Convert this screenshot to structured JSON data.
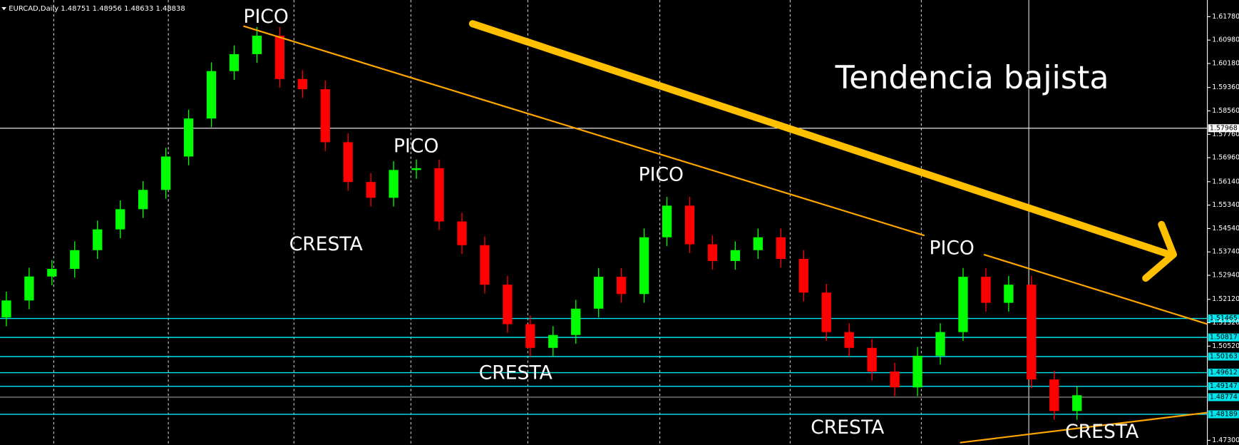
{
  "chart_data": {
    "type": "candlestick",
    "title": "EURCAD,Daily 1.48751 1.48956 1.48633 1.48838",
    "annotations": [
      "PICO",
      "PICO",
      "PICO",
      "PICO",
      "CRESTA",
      "CRESTA",
      "CRESTA",
      "CRESTA",
      "Tendencia bajista"
    ],
    "ylim": [
      1.4714,
      1.6235
    ],
    "yticks": [
      {
        "value": 1.6178,
        "label": "1.61780"
      },
      {
        "value": 1.6098,
        "label": "1.60980"
      },
      {
        "value": 1.6018,
        "label": "1.60180"
      },
      {
        "value": 1.5936,
        "label": "1.59360"
      },
      {
        "value": 1.5856,
        "label": "1.58560"
      },
      {
        "value": 1.5776,
        "label": "1.57760"
      },
      {
        "value": 1.5696,
        "label": "1.56960"
      },
      {
        "value": 1.5614,
        "label": "1.56140"
      },
      {
        "value": 1.5534,
        "label": "1.55340"
      },
      {
        "value": 1.5454,
        "label": "1.54540"
      },
      {
        "value": 1.5374,
        "label": "1.53740"
      },
      {
        "value": 1.5294,
        "label": "1.52940"
      },
      {
        "value": 1.5212,
        "label": "1.52120"
      },
      {
        "value": 1.5132,
        "label": "1.51320"
      },
      {
        "value": 1.5052,
        "label": "1.50520"
      },
      {
        "value": 1.473,
        "label": "1.47300"
      }
    ],
    "levels": [
      {
        "value": 1.51465,
        "label": "1.51465"
      },
      {
        "value": 1.50817,
        "label": "1.50817"
      },
      {
        "value": 1.50163,
        "label": "1.50163"
      },
      {
        "value": 1.49612,
        "label": "1.49612"
      },
      {
        "value": 1.49147,
        "label": "1.49147"
      },
      {
        "value": 1.48189,
        "label": "1.48189"
      }
    ],
    "current_price": {
      "value": 1.48774,
      "label": "1.48774"
    },
    "crosshair": {
      "value": 1.57968,
      "label": "1.57968"
    },
    "up_color": "#00ff00",
    "down_color": "#ff0000",
    "level_color": "#00e5ee",
    "open": [
      1.515,
      1.5208,
      1.529,
      1.5316,
      1.538,
      1.5451,
      1.552,
      1.5586,
      1.57,
      1.583,
      1.5992,
      1.605,
      1.6113,
      1.5965,
      1.593,
      1.5749,
      1.5613,
      1.5559,
      1.5654,
      1.566,
      1.5478,
      1.5397,
      1.5262,
      1.5127,
      1.5046,
      1.509,
      1.518,
      1.5289,
      1.523,
      1.5424,
      1.5532,
      1.54,
      1.5343,
      1.538,
      1.5424,
      1.535,
      1.5235,
      1.51,
      1.5046,
      1.4965,
      1.4911,
      1.5019,
      1.51,
      1.5289,
      1.52,
      1.5262,
      1.4938,
      1.483
    ],
    "high": [
      1.5238,
      1.532,
      1.5346,
      1.541,
      1.5481,
      1.555,
      1.5616,
      1.573,
      1.586,
      1.6022,
      1.608,
      1.6143,
      1.6143,
      1.5995,
      1.596,
      1.5779,
      1.5643,
      1.5684,
      1.569,
      1.569,
      1.5508,
      1.5427,
      1.5292,
      1.5157,
      1.512,
      1.521,
      1.5319,
      1.5319,
      1.5454,
      1.5562,
      1.5562,
      1.543,
      1.541,
      1.5454,
      1.5454,
      1.538,
      1.5265,
      1.513,
      1.5076,
      1.4995,
      1.5049,
      1.513,
      1.5319,
      1.5319,
      1.5292,
      1.5292,
      1.4968,
      1.4914
    ],
    "low": [
      1.512,
      1.5178,
      1.526,
      1.5286,
      1.535,
      1.5421,
      1.549,
      1.5556,
      1.567,
      1.58,
      1.5962,
      1.602,
      1.5935,
      1.59,
      1.5719,
      1.5583,
      1.5529,
      1.5529,
      1.5624,
      1.5448,
      1.5367,
      1.5232,
      1.5097,
      1.5016,
      1.5016,
      1.506,
      1.515,
      1.52,
      1.52,
      1.5394,
      1.537,
      1.5313,
      1.5313,
      1.535,
      1.532,
      1.5205,
      1.507,
      1.5016,
      1.4935,
      1.4881,
      1.4881,
      1.4989,
      1.507,
      1.517,
      1.517,
      1.4908,
      1.48,
      1.48
    ],
    "close": [
      1.5208,
      1.529,
      1.5316,
      1.538,
      1.5451,
      1.552,
      1.5586,
      1.57,
      1.583,
      1.5992,
      1.605,
      1.6113,
      1.5965,
      1.593,
      1.5749,
      1.5613,
      1.5559,
      1.5654,
      1.566,
      1.5478,
      1.5397,
      1.5262,
      1.5127,
      1.5046,
      1.509,
      1.518,
      1.5289,
      1.523,
      1.5424,
      1.5532,
      1.54,
      1.5343,
      1.538,
      1.5424,
      1.535,
      1.5235,
      1.51,
      1.5046,
      1.4965,
      1.4911,
      1.5019,
      1.51,
      1.5289,
      1.52,
      1.5262,
      1.4938,
      1.483,
      1.4884
    ]
  }
}
